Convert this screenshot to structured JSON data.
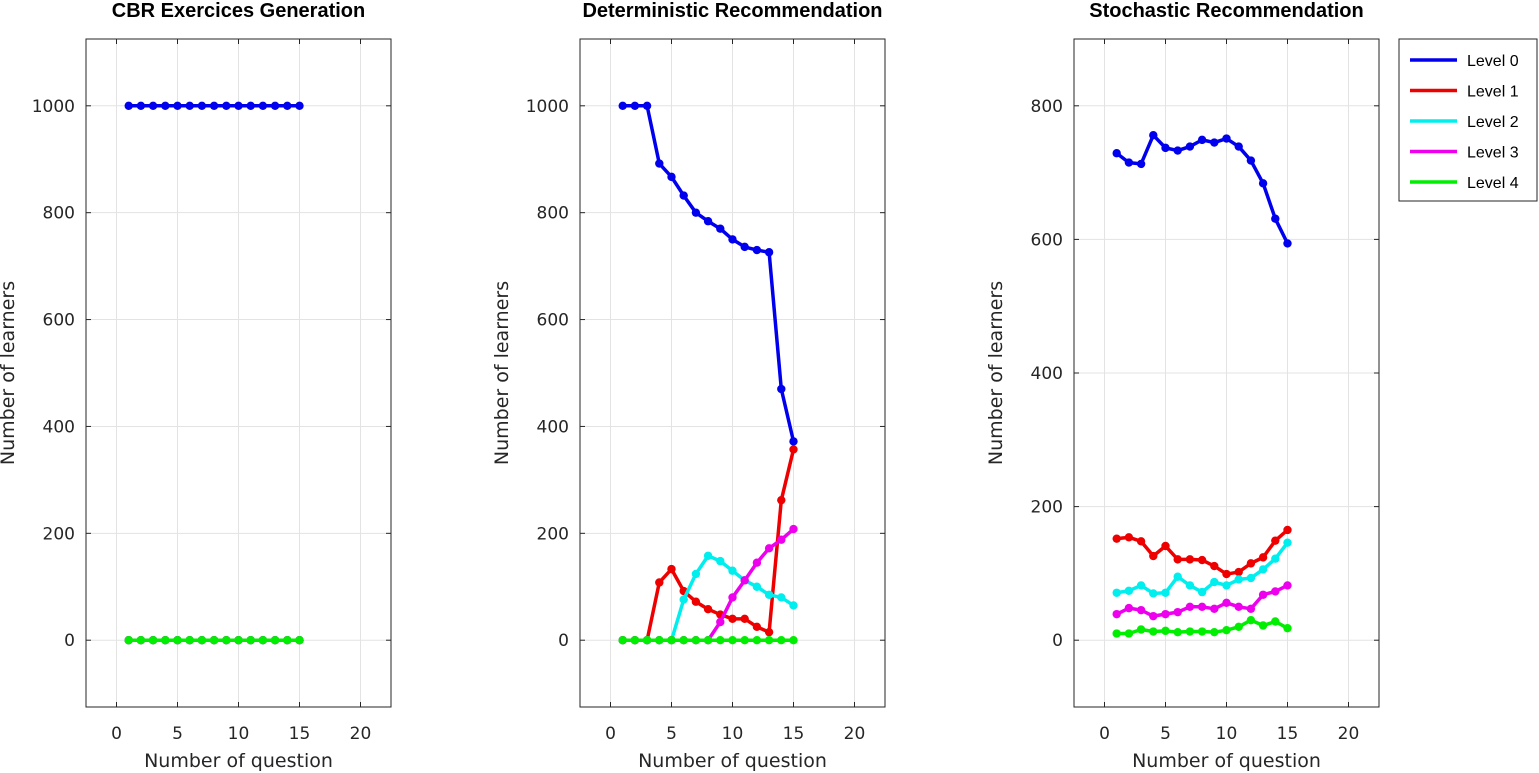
{
  "chart_data": [
    {
      "type": "line",
      "title": "CBR Exercices Generation",
      "xlabel": "Number of question",
      "ylabel": "Number of learners",
      "xlim": [
        -2.5,
        22.5
      ],
      "ylim": [
        -125,
        1125
      ],
      "xticks": [
        0,
        5,
        10,
        15,
        20
      ],
      "yticks": [
        0,
        200,
        400,
        600,
        800,
        1000
      ],
      "grid": true,
      "x": [
        1,
        2,
        3,
        4,
        5,
        6,
        7,
        8,
        9,
        10,
        11,
        12,
        13,
        14,
        15
      ],
      "series": [
        {
          "name": "Level 0",
          "values": [
            1000,
            1000,
            1000,
            1000,
            1000,
            1000,
            1000,
            1000,
            1000,
            1000,
            1000,
            1000,
            1000,
            1000,
            1000
          ]
        },
        {
          "name": "Level 1",
          "values": [
            0,
            0,
            0,
            0,
            0,
            0,
            0,
            0,
            0,
            0,
            0,
            0,
            0,
            0,
            0
          ]
        },
        {
          "name": "Level 2",
          "values": [
            0,
            0,
            0,
            0,
            0,
            0,
            0,
            0,
            0,
            0,
            0,
            0,
            0,
            0,
            0
          ]
        },
        {
          "name": "Level 3",
          "values": [
            0,
            0,
            0,
            0,
            0,
            0,
            0,
            0,
            0,
            0,
            0,
            0,
            0,
            0,
            0
          ]
        },
        {
          "name": "Level 4",
          "values": [
            0,
            0,
            0,
            0,
            0,
            0,
            0,
            0,
            0,
            0,
            0,
            0,
            0,
            0,
            0
          ]
        }
      ]
    },
    {
      "type": "line",
      "title": "Deterministic Recommendation",
      "xlabel": "Number of question",
      "ylabel": "Number of learners",
      "xlim": [
        -2.5,
        22.5
      ],
      "ylim": [
        -125,
        1125
      ],
      "xticks": [
        0,
        5,
        10,
        15,
        20
      ],
      "yticks": [
        0,
        200,
        400,
        600,
        800,
        1000
      ],
      "grid": true,
      "x": [
        1,
        2,
        3,
        4,
        5,
        6,
        7,
        8,
        9,
        10,
        11,
        12,
        13,
        14,
        15
      ],
      "series": [
        {
          "name": "Level 0",
          "values": [
            1000,
            1000,
            1000,
            892,
            867,
            832,
            800,
            784,
            770,
            750,
            736,
            730,
            726,
            470,
            372
          ]
        },
        {
          "name": "Level 1",
          "values": [
            0,
            0,
            0,
            108,
            133,
            92,
            72,
            58,
            48,
            40,
            40,
            25,
            15,
            262,
            357
          ]
        },
        {
          "name": "Level 2",
          "values": [
            0,
            0,
            0,
            0,
            0,
            76,
            124,
            158,
            148,
            130,
            112,
            100,
            85,
            80,
            65
          ]
        },
        {
          "name": "Level 3",
          "values": [
            0,
            0,
            0,
            0,
            0,
            0,
            0,
            0,
            34,
            80,
            112,
            145,
            172,
            188,
            208
          ]
        },
        {
          "name": "Level 4",
          "values": [
            0,
            0,
            0,
            0,
            0,
            0,
            0,
            0,
            0,
            0,
            0,
            0,
            0,
            0,
            0
          ]
        }
      ]
    },
    {
      "type": "line",
      "title": "Stochastic Recommendation",
      "xlabel": "Number of question",
      "ylabel": "Number of learners",
      "xlim": [
        -2.5,
        22.5
      ],
      "ylim": [
        -100,
        900
      ],
      "xticks": [
        0,
        5,
        10,
        15,
        20
      ],
      "yticks": [
        0,
        200,
        400,
        600,
        800
      ],
      "grid": true,
      "x": [
        1,
        2,
        3,
        4,
        5,
        6,
        7,
        8,
        9,
        10,
        11,
        12,
        13,
        14,
        15
      ],
      "series": [
        {
          "name": "Level 0",
          "values": [
            729,
            715,
            713,
            756,
            737,
            733,
            739,
            749,
            745,
            751,
            739,
            718,
            684,
            631,
            594
          ]
        },
        {
          "name": "Level 1",
          "values": [
            152,
            154,
            148,
            126,
            141,
            121,
            121,
            120,
            111,
            99,
            102,
            115,
            124,
            149,
            165
          ]
        },
        {
          "name": "Level 2",
          "values": [
            71,
            74,
            82,
            70,
            71,
            95,
            82,
            72,
            87,
            82,
            91,
            93,
            106,
            122,
            146
          ]
        },
        {
          "name": "Level 3",
          "values": [
            39,
            48,
            45,
            36,
            39,
            42,
            50,
            50,
            47,
            56,
            50,
            47,
            68,
            73,
            82
          ]
        },
        {
          "name": "Level 4",
          "values": [
            10,
            10,
            16,
            13,
            14,
            12,
            13,
            13,
            12,
            15,
            20,
            30,
            22,
            28,
            18
          ]
        }
      ]
    }
  ],
  "legend": {
    "position": "top-right",
    "entries": [
      "Level 0",
      "Level 1",
      "Level 2",
      "Level 3",
      "Level 4"
    ]
  },
  "colors": {
    "Level 0": "#0000ee",
    "Level 1": "#ee0000",
    "Level 2": "#00eeee",
    "Level 3": "#ee00ee",
    "Level 4": "#00ee00"
  }
}
